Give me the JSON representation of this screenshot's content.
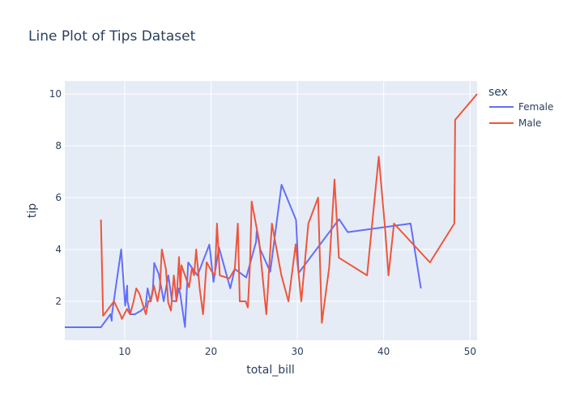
{
  "chart_data": {
    "type": "line",
    "title": "Line Plot of Tips Dataset",
    "xlabel": "total_bill",
    "ylabel": "tip",
    "xlim": [
      3.07,
      50.81
    ],
    "ylim": [
      0.5,
      10.5
    ],
    "xticks": [
      10,
      20,
      30,
      40,
      50
    ],
    "yticks": [
      2,
      4,
      6,
      8,
      10
    ],
    "grid": true,
    "legend": {
      "title": "sex",
      "position": "right"
    },
    "series": [
      {
        "name": "Female",
        "color": "#636efa",
        "x": [
          3.07,
          7.25,
          8.35,
          8.51,
          8.52,
          9.6,
          10.07,
          10.29,
          10.33,
          10.65,
          11.17,
          11.87,
          12.43,
          12.66,
          13.0,
          13.27,
          13.42,
          13.94,
          14.26,
          14.52,
          15.06,
          15.48,
          15.98,
          16.27,
          16.43,
          16.99,
          17.35,
          18.43,
          19.81,
          20.29,
          20.92,
          22.23,
          22.75,
          24.08,
          25.21,
          25.29,
          25.71,
          26.86,
          28.17,
          29.85,
          30.14,
          34.83,
          35.83,
          43.11,
          44.3
        ],
        "y": [
          1.0,
          1.0,
          1.5,
          1.25,
          1.48,
          4.0,
          1.83,
          2.6,
          2.0,
          1.5,
          1.5,
          1.63,
          1.8,
          2.5,
          2.0,
          2.5,
          3.48,
          3.06,
          2.5,
          2.0,
          3.0,
          2.02,
          2.0,
          2.5,
          2.3,
          1.01,
          3.5,
          3.0,
          4.19,
          2.75,
          4.08,
          2.5,
          3.25,
          2.92,
          4.29,
          4.71,
          4.0,
          3.14,
          6.5,
          5.14,
          3.09,
          5.17,
          4.67,
          5.0,
          2.5
        ]
      },
      {
        "name": "Male",
        "color": "#ef553b",
        "x": [
          7.25,
          7.51,
          8.77,
          9.55,
          9.68,
          10.27,
          10.34,
          10.63,
          11.02,
          11.35,
          11.69,
          12.02,
          12.46,
          12.74,
          13.03,
          13.39,
          13.81,
          14.07,
          14.31,
          14.78,
          15.04,
          15.36,
          15.69,
          16.0,
          16.29,
          16.45,
          16.58,
          17.26,
          17.46,
          17.78,
          18.04,
          18.28,
          18.69,
          19.08,
          19.49,
          20.08,
          20.45,
          20.69,
          21.01,
          22.12,
          22.76,
          23.1,
          23.33,
          24.01,
          24.27,
          24.52,
          24.71,
          25.56,
          26.41,
          27.05,
          28.15,
          28.97,
          29.8,
          30.46,
          31.27,
          32.4,
          32.83,
          33.68,
          34.3,
          34.81,
          38.07,
          39.42,
          40.17,
          40.55,
          41.19,
          45.35,
          48.17,
          48.27,
          50.81
        ],
        "y": [
          5.15,
          1.44,
          2.0,
          1.45,
          1.32,
          1.71,
          1.66,
          1.5,
          1.98,
          2.5,
          2.31,
          1.97,
          1.5,
          2.01,
          2.0,
          2.61,
          2.0,
          2.5,
          4.0,
          3.23,
          1.96,
          1.64,
          3.0,
          2.0,
          3.71,
          2.47,
          3.39,
          2.74,
          2.54,
          3.27,
          3.0,
          4.0,
          2.5,
          1.5,
          3.51,
          3.15,
          3.0,
          5.0,
          3.0,
          2.88,
          3.25,
          5.0,
          2.0,
          2.0,
          1.76,
          3.48,
          5.85,
          4.34,
          1.5,
          5.0,
          3.0,
          2.0,
          4.2,
          2.0,
          5.0,
          6.0,
          1.17,
          3.31,
          6.7,
          3.68,
          3.0,
          7.58,
          4.73,
          3.0,
          5.0,
          3.5,
          5.0,
          9.0,
          10.0
        ]
      }
    ]
  }
}
